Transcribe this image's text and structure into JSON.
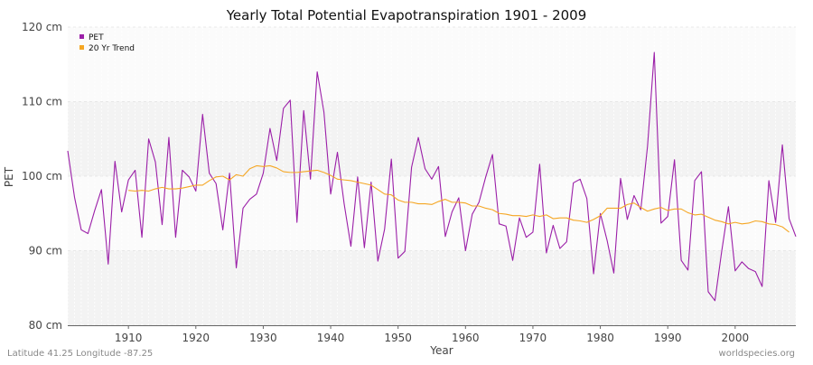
{
  "chart_data": {
    "type": "line",
    "title": "Yearly Total Potential Evapotranspiration 1901 - 2009",
    "xlabel": "Year",
    "ylabel": "PET",
    "xlim": [
      1901,
      2009
    ],
    "ylim": [
      80,
      120
    ],
    "x_ticks": [
      1910,
      1920,
      1930,
      1940,
      1950,
      1960,
      1970,
      1980,
      1990,
      2000
    ],
    "x_tick_labels": [
      "1910",
      "1920",
      "1930",
      "1940",
      "1950",
      "1960",
      "1970",
      "1980",
      "1990",
      "2000"
    ],
    "y_ticks": [
      80,
      90,
      100,
      110,
      120
    ],
    "y_tick_labels": [
      "80 cm",
      "90 cm",
      "100 cm",
      "110 cm",
      "120 cm"
    ],
    "legend": [
      "PET",
      "20 Yr Trend"
    ],
    "legend_position": "top-left",
    "series": [
      {
        "name": "PET",
        "color": "#9b1fa8",
        "x_start": 1901,
        "values": [
          103.4,
          97.2,
          92.8,
          92.3,
          95.4,
          98.2,
          88.2,
          102.0,
          95.2,
          99.5,
          100.8,
          91.8,
          105.0,
          101.9,
          93.5,
          105.2,
          91.8,
          100.8,
          99.9,
          98.0,
          108.3,
          100.4,
          99.0,
          92.8,
          100.4,
          87.7,
          95.7,
          96.9,
          97.6,
          100.4,
          106.4,
          102.1,
          109.1,
          110.2,
          93.8,
          108.8,
          99.6,
          114.0,
          108.6,
          97.6,
          103.2,
          96.3,
          90.6,
          99.9,
          90.4,
          99.2,
          88.6,
          92.9,
          102.3,
          89.0,
          89.9,
          101.2,
          105.2,
          101.0,
          99.6,
          101.3,
          91.9,
          95.2,
          97.1,
          90.0,
          94.9,
          96.5,
          99.9,
          102.9,
          93.6,
          93.3,
          88.7,
          94.4,
          91.8,
          92.5,
          101.6,
          89.7,
          93.4,
          90.3,
          91.2,
          99.1,
          99.6,
          97.0,
          86.9,
          95.0,
          91.4,
          87.0,
          99.7,
          94.2,
          97.4,
          95.5,
          104.0,
          116.6,
          93.7,
          94.6,
          102.2,
          88.7,
          87.4,
          99.4,
          100.6,
          84.5,
          83.3,
          89.9,
          95.9,
          87.3,
          88.5,
          87.6,
          87.2,
          85.2,
          99.4,
          93.8,
          104.2,
          94.3,
          91.9
        ]
      },
      {
        "name": "20 Yr Trend",
        "color": "#f5a623",
        "x_start": 1910,
        "values": [
          98.1,
          98.0,
          98.1,
          98.0,
          98.3,
          98.5,
          98.3,
          98.3,
          98.4,
          98.6,
          98.8,
          98.8,
          99.4,
          99.9,
          100.0,
          99.5,
          100.2,
          100.0,
          101.0,
          101.4,
          101.3,
          101.4,
          101.1,
          100.6,
          100.5,
          100.5,
          100.6,
          100.7,
          100.8,
          100.5,
          100.1,
          99.6,
          99.5,
          99.4,
          99.2,
          99.0,
          98.8,
          98.2,
          97.6,
          97.5,
          96.8,
          96.5,
          96.5,
          96.3,
          96.3,
          96.2,
          96.6,
          96.9,
          96.5,
          96.5,
          96.4,
          96.0,
          96.0,
          95.7,
          95.5,
          95.0,
          94.9,
          94.7,
          94.7,
          94.6,
          94.8,
          94.6,
          94.8,
          94.3,
          94.4,
          94.4,
          94.1,
          94.0,
          93.8,
          94.2,
          94.7,
          95.7,
          95.7,
          95.7,
          96.2,
          96.4,
          95.8,
          95.3,
          95.6,
          95.8,
          95.4,
          95.6,
          95.6,
          95.1,
          94.8,
          94.9,
          94.5,
          94.1,
          93.9,
          93.6,
          93.8,
          93.6,
          93.7,
          94.0,
          93.9,
          93.6,
          93.5,
          93.2,
          92.5
        ]
      }
    ]
  },
  "footer": {
    "location": "Latitude 41.25 Longitude -87.25",
    "source": "worldspecies.org"
  }
}
